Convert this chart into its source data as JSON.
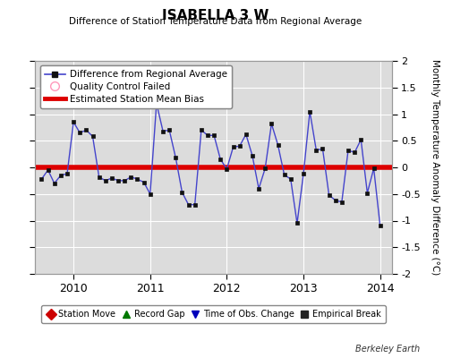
{
  "title": "ISABELLA 3 W",
  "subtitle": "Difference of Station Temperature Data from Regional Average",
  "ylabel": "Monthly Temperature Anomaly Difference (°C)",
  "bias": 0.0,
  "ylim": [
    -2,
    2
  ],
  "background_color": "#dcdcdc",
  "line_color": "#4444cc",
  "bias_color": "#dd0000",
  "marker_color": "#111111",
  "times": [
    2009.583,
    2009.667,
    2009.75,
    2009.833,
    2009.917,
    2010.0,
    2010.083,
    2010.167,
    2010.25,
    2010.333,
    2010.417,
    2010.5,
    2010.583,
    2010.667,
    2010.75,
    2010.833,
    2010.917,
    2011.0,
    2011.083,
    2011.167,
    2011.25,
    2011.333,
    2011.417,
    2011.5,
    2011.583,
    2011.667,
    2011.75,
    2011.833,
    2011.917,
    2012.0,
    2012.083,
    2012.167,
    2012.25,
    2012.333,
    2012.417,
    2012.5,
    2012.583,
    2012.667,
    2012.75,
    2012.833,
    2012.917,
    2013.0,
    2013.083,
    2013.167,
    2013.25,
    2013.333,
    2013.417,
    2013.5,
    2013.583,
    2013.667,
    2013.75,
    2013.833,
    2013.917,
    2014.0
  ],
  "values": [
    -0.22,
    -0.05,
    -0.3,
    -0.15,
    -0.12,
    0.85,
    0.65,
    0.7,
    0.58,
    -0.18,
    -0.25,
    -0.2,
    -0.25,
    -0.25,
    -0.18,
    -0.22,
    -0.28,
    -0.5,
    1.2,
    0.68,
    0.7,
    0.18,
    -0.47,
    -0.7,
    -0.7,
    0.7,
    0.6,
    0.6,
    0.15,
    -0.03,
    0.38,
    0.4,
    0.62,
    0.22,
    -0.4,
    -0.02,
    0.82,
    0.42,
    -0.14,
    -0.22,
    -1.05,
    -0.12,
    1.05,
    0.32,
    0.35,
    -0.52,
    -0.62,
    -0.65,
    0.32,
    0.28,
    0.52,
    -0.48,
    -0.02,
    -1.1
  ],
  "xticks": [
    2010,
    2011,
    2012,
    2013,
    2014
  ],
  "yticks": [
    -2.0,
    -1.5,
    -1.0,
    -0.5,
    0.0,
    0.5,
    1.0,
    1.5,
    2.0
  ],
  "ytick_labels": [
    "-2",
    "-1.5",
    "-1",
    "-0.5",
    "0",
    "0.5",
    "1",
    "1.5",
    "2"
  ],
  "berkeley_earth_label": "Berkeley Earth",
  "legend1": [
    {
      "label": "Difference from Regional Average",
      "color": "#4444cc",
      "lw": 1.2,
      "marker": "s",
      "ms": 4
    },
    {
      "label": "Quality Control Failed",
      "color": "#ff99bb",
      "marker": "o",
      "ms": 7
    },
    {
      "label": "Estimated Station Mean Bias",
      "color": "#dd0000",
      "lw": 3.5
    }
  ],
  "legend2": [
    {
      "label": "Station Move",
      "color": "#cc0000",
      "marker": "D"
    },
    {
      "label": "Record Gap",
      "color": "#007700",
      "marker": "^"
    },
    {
      "label": "Time of Obs. Change",
      "color": "#0000bb",
      "marker": "v"
    },
    {
      "label": "Empirical Break",
      "color": "#222222",
      "marker": "s"
    }
  ]
}
